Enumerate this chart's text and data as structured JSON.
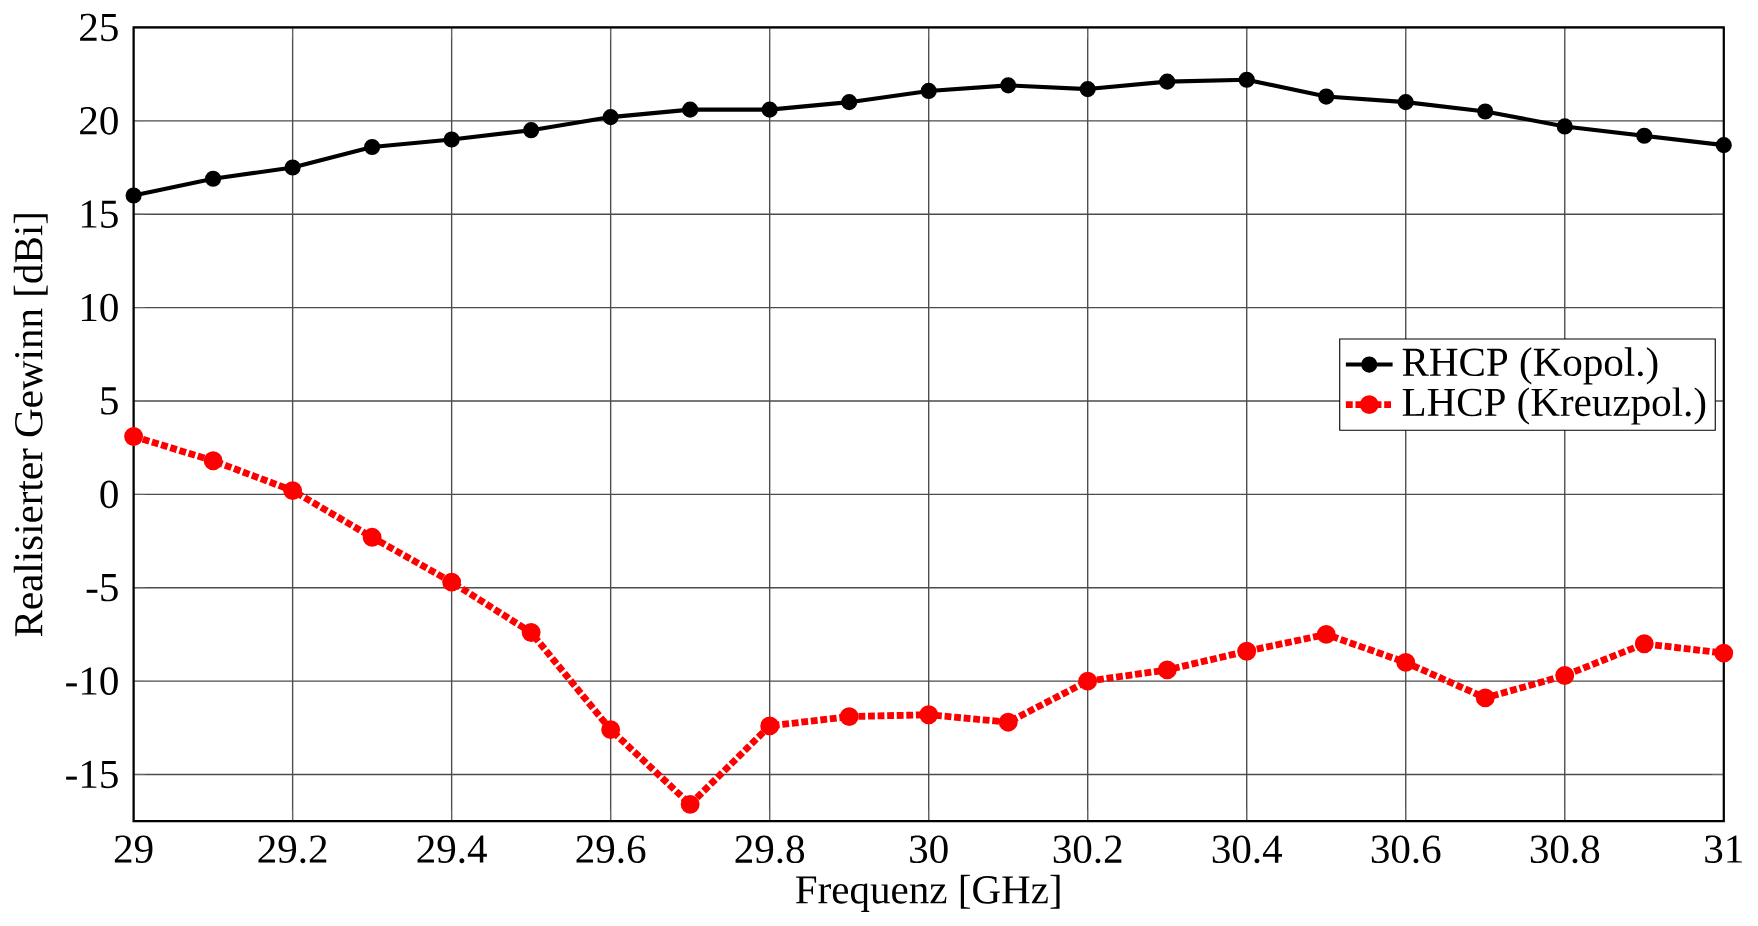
{
  "chart_data": {
    "type": "line",
    "xlabel": "Frequenz [GHz]",
    "ylabel": "Realisierter Gewinn [dBi]",
    "x": [
      29,
      29.1,
      29.2,
      29.3,
      29.4,
      29.5,
      29.6,
      29.7,
      29.8,
      29.9,
      30,
      30.1,
      30.2,
      30.3,
      30.4,
      30.5,
      30.6,
      30.7,
      30.8,
      30.9,
      31
    ],
    "series": [
      {
        "name": "RHCP (Kopol.)",
        "color": "#000000",
        "line_style": "solid",
        "values": [
          16.0,
          16.9,
          17.5,
          18.6,
          19.0,
          19.5,
          20.2,
          20.6,
          20.6,
          21.0,
          21.6,
          21.9,
          21.7,
          22.1,
          22.2,
          21.3,
          21.0,
          20.5,
          19.7,
          19.2,
          18.7
        ]
      },
      {
        "name": "LHCP (Kreuzpol.)",
        "color": "#ff0000",
        "line_style": "dotted",
        "values": [
          3.1,
          1.8,
          0.2,
          -2.3,
          -4.7,
          -7.4,
          -12.6,
          -16.6,
          -12.4,
          -11.9,
          -11.8,
          -12.2,
          -10.0,
          -9.4,
          -8.4,
          -7.5,
          -9.0,
          -10.9,
          -9.7,
          -8.0,
          -8.5
        ]
      }
    ],
    "xlim": [
      29,
      31
    ],
    "xticks": [
      29,
      29.2,
      29.4,
      29.6,
      29.8,
      30,
      30.2,
      30.4,
      30.6,
      30.8,
      31
    ],
    "ylim": [
      -17.5,
      25
    ],
    "yticks": [
      -15,
      -10,
      -5,
      0,
      5,
      10,
      15,
      20,
      25
    ],
    "grid": true,
    "legend": "right",
    "marker": "circle"
  }
}
